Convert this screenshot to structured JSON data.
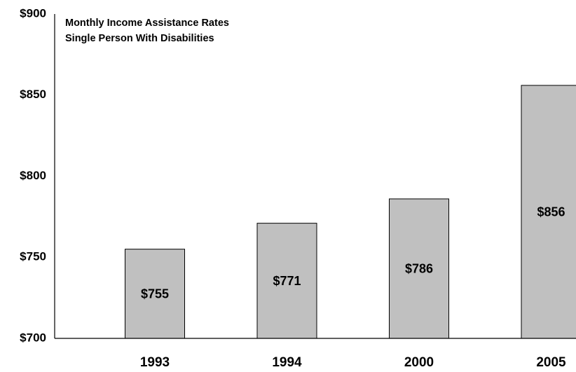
{
  "chart_data": {
    "type": "bar",
    "title": "Monthly Income Assistance Rates",
    "subtitle": "Single Person With Disabilities",
    "xlabel": "",
    "ylabel": "",
    "categories": [
      "1993",
      "1994",
      "2000",
      "2005"
    ],
    "values": [
      755,
      771,
      786,
      856
    ],
    "data_labels": [
      "$755",
      "$771",
      "$786",
      "$856"
    ],
    "ylim": [
      700,
      900
    ],
    "yticks": [
      700,
      750,
      800,
      850,
      900
    ],
    "ytick_labels": [
      "$700",
      "$750",
      "$800",
      "$850",
      "$900"
    ],
    "grid": false,
    "legend": "none",
    "bar_color": "#c0c0c0",
    "bar_edge_color": "#000000"
  }
}
